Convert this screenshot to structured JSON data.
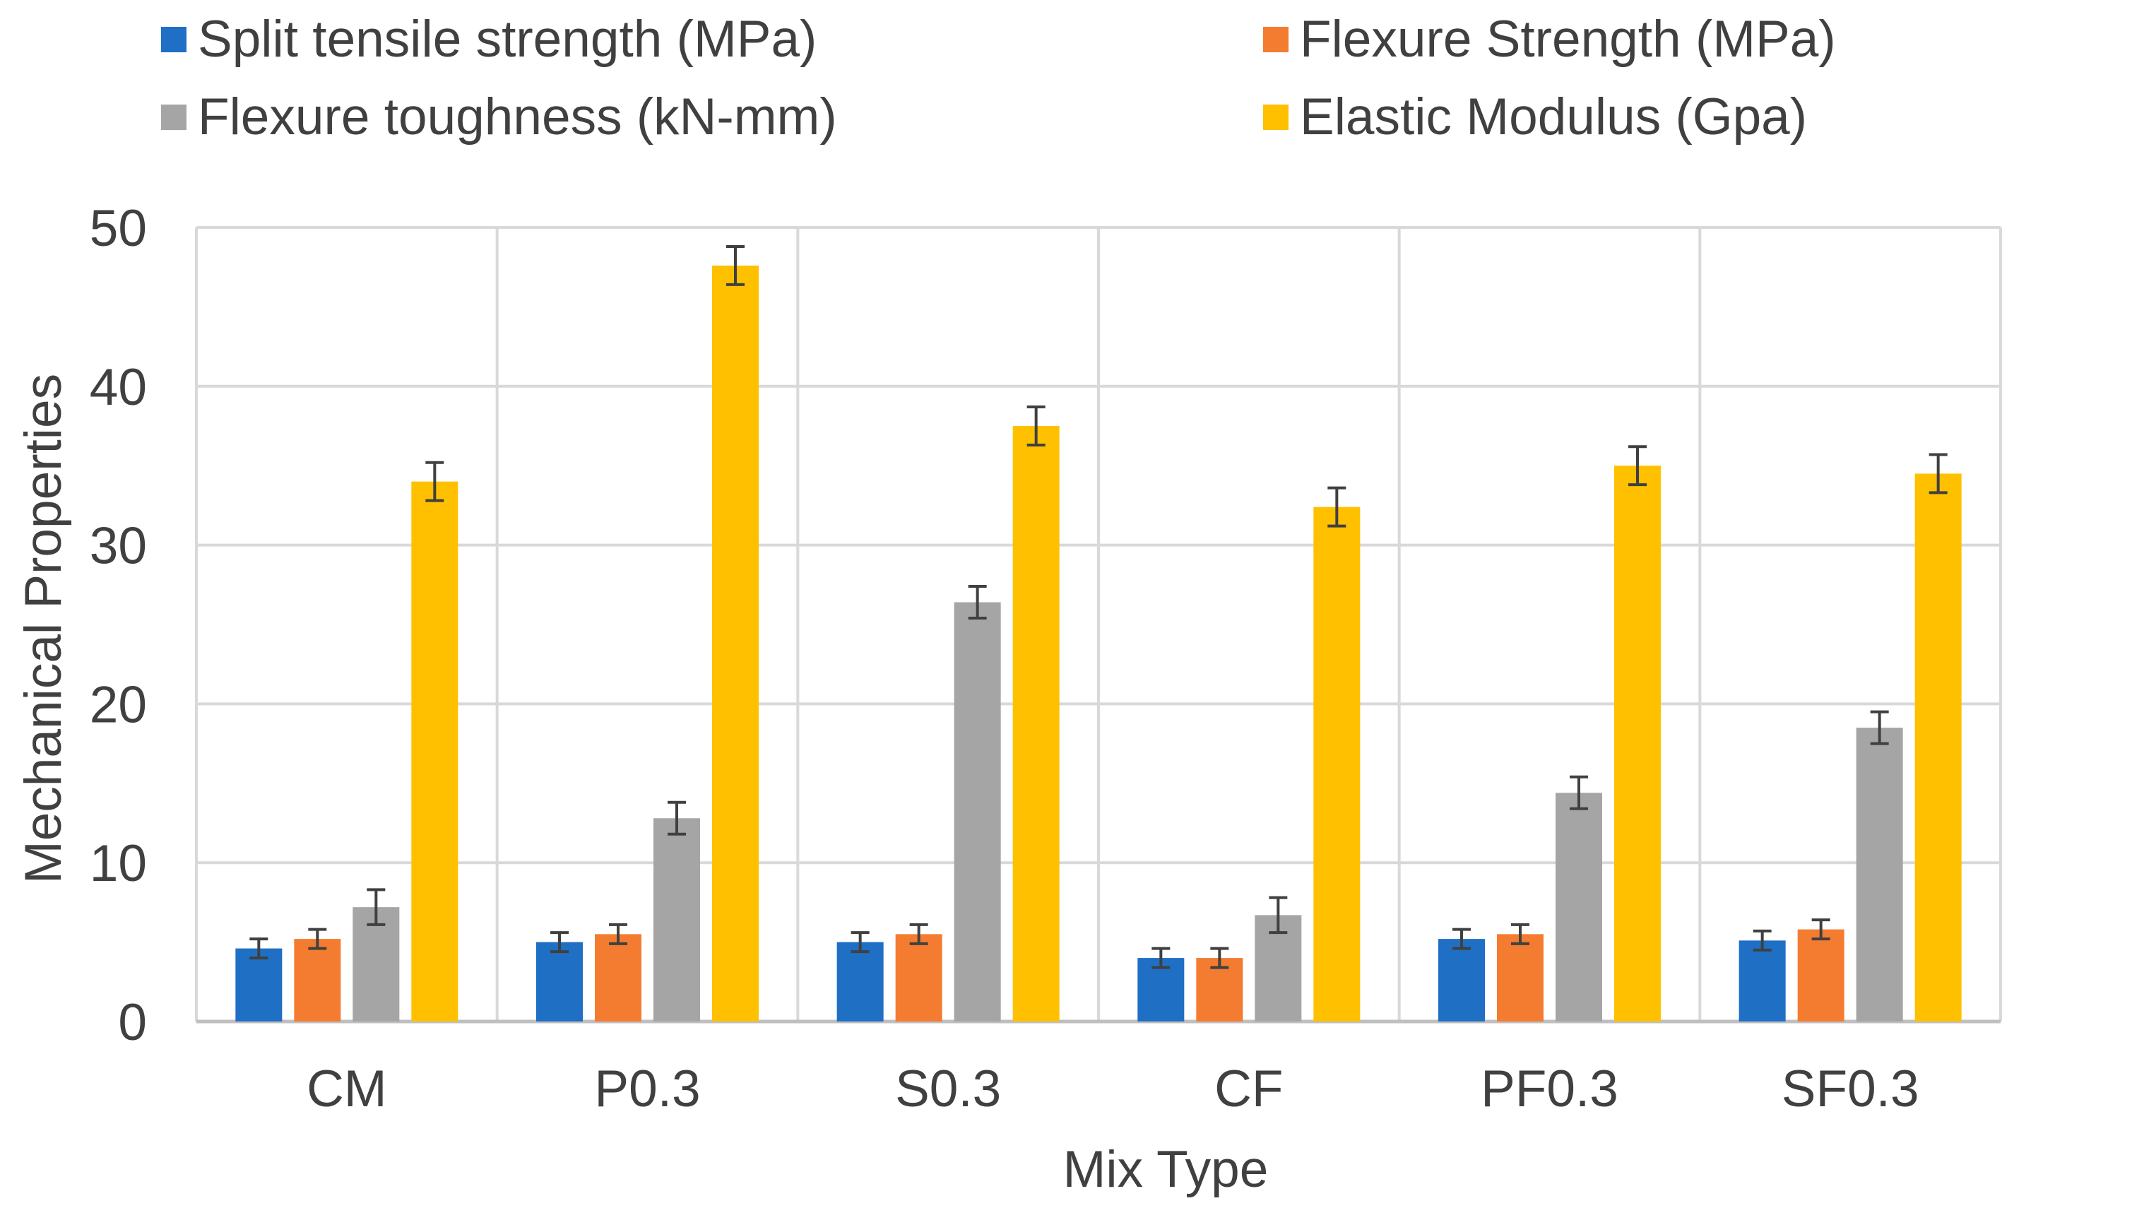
{
  "chart_data": {
    "type": "bar",
    "title": "",
    "xlabel": "Mix Type",
    "ylabel": "Mechanical Properties",
    "ylim": [
      0,
      50
    ],
    "yticks": [
      0,
      10,
      20,
      30,
      40,
      50
    ],
    "grid": true,
    "legend_position": "top",
    "categories": [
      "CM",
      "P0.3",
      "S0.3",
      "CF",
      "PF0.3",
      "SF0.3"
    ],
    "series": [
      {
        "name": "Split tensile strength (MPa)",
        "color": "#1F6FC5",
        "values": [
          4.6,
          5.0,
          5.0,
          4.0,
          5.2,
          5.1
        ],
        "errors": [
          0.6,
          0.6,
          0.6,
          0.6,
          0.6,
          0.6
        ]
      },
      {
        "name": "Flexure Strength (MPa)",
        "color": "#F47C30",
        "values": [
          5.2,
          5.5,
          5.5,
          4.0,
          5.5,
          5.8
        ],
        "errors": [
          0.6,
          0.6,
          0.6,
          0.6,
          0.6,
          0.6
        ]
      },
      {
        "name": "Flexure toughness (kN-mm)",
        "color": "#A5A5A5",
        "values": [
          7.2,
          12.8,
          26.4,
          6.7,
          14.4,
          18.5
        ],
        "errors": [
          1.1,
          1.0,
          1.0,
          1.1,
          1.0,
          1.0
        ]
      },
      {
        "name": "Elastic Modulus (Gpa)",
        "color": "#FFC000",
        "values": [
          34.0,
          47.6,
          37.5,
          32.4,
          35.0,
          34.5
        ],
        "errors": [
          1.2,
          1.2,
          1.2,
          1.2,
          1.2,
          1.2
        ]
      }
    ]
  }
}
